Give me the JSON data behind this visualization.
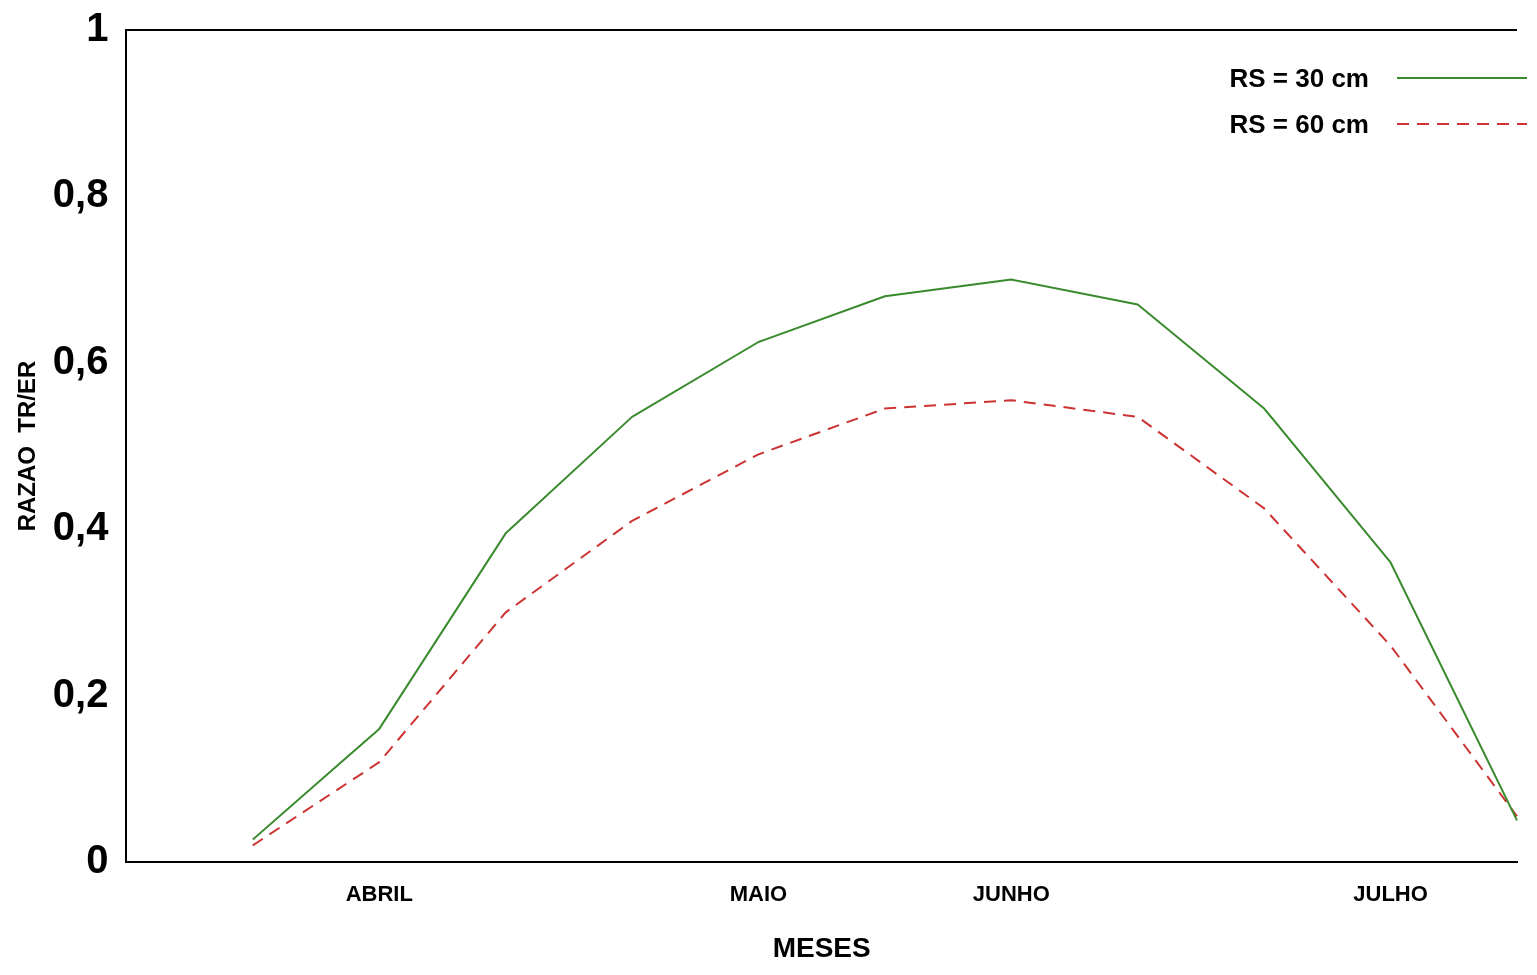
{
  "chart_data": {
    "type": "line",
    "xlabel": "MESES",
    "ylabel": "RAZAO  TR/ER",
    "categories": [
      null,
      "ABRIL",
      null,
      null,
      "MAIO",
      null,
      "JUNHO",
      null,
      null,
      "JULHO",
      null
    ],
    "ylim": [
      0,
      1
    ],
    "yticks": [
      0,
      {
        "value": 0.2,
        "label": "0,2"
      },
      {
        "value": 0.4,
        "label": "0,4"
      },
      {
        "value": 0.6,
        "label": "0,6"
      },
      {
        "value": 0.8,
        "label": "0,8"
      },
      1
    ],
    "series": [
      {
        "name": "RS = 30 cm",
        "color": "#3a8a2e",
        "line_style": "solid",
        "values": [
          0.027,
          0.16,
          0.395,
          0.535,
          0.625,
          0.68,
          0.7,
          0.67,
          0.545,
          0.36,
          0.05
        ]
      },
      {
        "name": "RS = 60 cm",
        "color": "#cc3333",
        "line_style": "dashed",
        "values": [
          0.02,
          0.12,
          0.3,
          0.41,
          0.49,
          0.545,
          0.555,
          0.535,
          0.425,
          0.26,
          0.055
        ]
      }
    ],
    "legend": "top right",
    "grid": false,
    "marker": "none"
  }
}
